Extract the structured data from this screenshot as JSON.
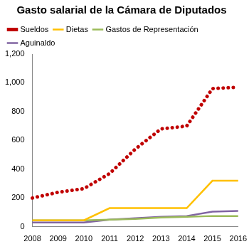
{
  "chart_data": {
    "type": "line",
    "title": "Gasto salarial de la Cámara de Diputados",
    "categories": [
      "2008",
      "2009",
      "2010",
      "2011",
      "2012",
      "2013",
      "2014",
      "2015",
      "2016"
    ],
    "series": [
      {
        "name": "Sueldos",
        "color": "#c00000",
        "line_style": "dotted",
        "values": [
          200,
          240,
          265,
          370,
          540,
          680,
          700,
          960,
          970
        ]
      },
      {
        "name": "Dietas",
        "color": "#ffc000",
        "line_style": "solid",
        "values": [
          45,
          45,
          45,
          130,
          130,
          130,
          130,
          320,
          320
        ]
      },
      {
        "name": "Gastos de Representación",
        "color": "#9bbb59",
        "line_style": "solid",
        "values": [
          45,
          45,
          45,
          50,
          55,
          65,
          70,
          75,
          75
        ]
      },
      {
        "name": "Aguinaldo",
        "color": "#8064a2",
        "line_style": "solid",
        "values": [
          30,
          30,
          30,
          50,
          60,
          70,
          75,
          105,
          110
        ]
      }
    ],
    "ylim": [
      0,
      1200
    ],
    "yticks": [
      0,
      200,
      400,
      600,
      800,
      1000,
      1200
    ],
    "grid": false,
    "legend": "top-left"
  }
}
